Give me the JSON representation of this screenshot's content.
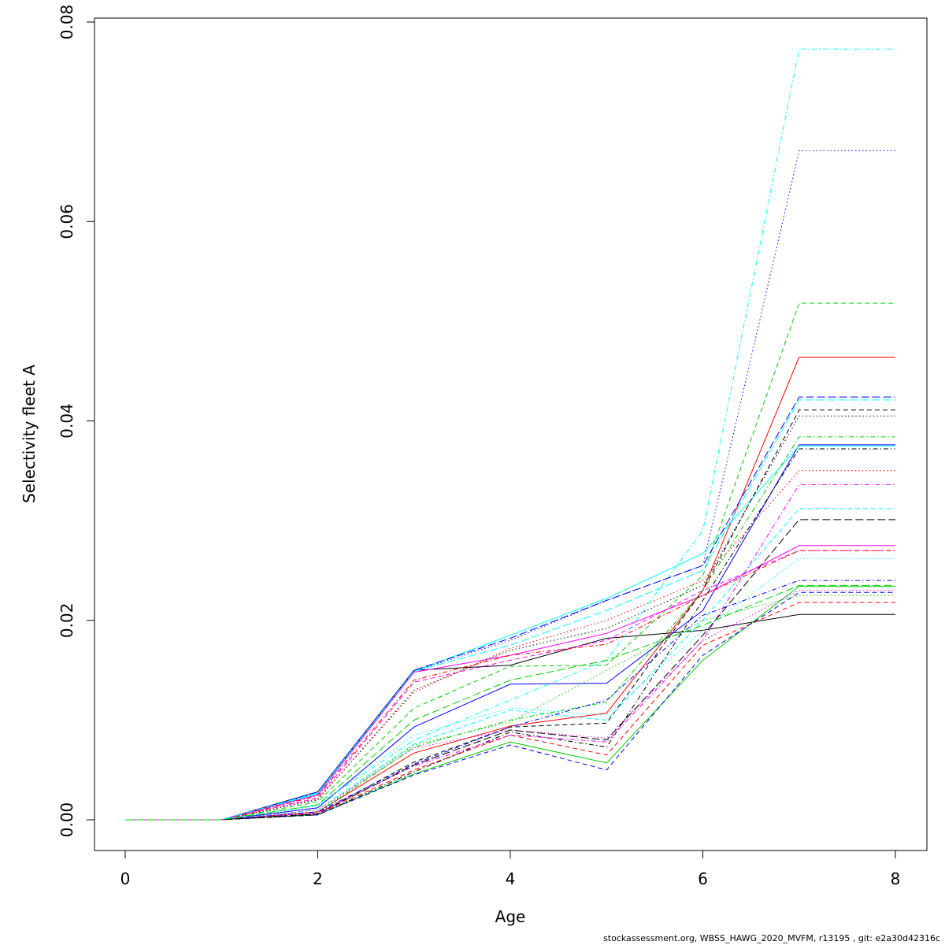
{
  "chart_data": {
    "type": "line",
    "title": "",
    "xlabel": "Age",
    "ylabel": "Selectivity fleet A",
    "xlim": [
      0,
      8
    ],
    "ylim": [
      0,
      0.08
    ],
    "x_ticks": [
      0,
      2,
      4,
      6,
      8
    ],
    "y_ticks": [
      0.0,
      0.02,
      0.04,
      0.06,
      0.08
    ],
    "x_tick_labels": [
      "0",
      "2",
      "4",
      "6",
      "8"
    ],
    "y_tick_labels": [
      "0.00",
      "0.02",
      "0.04",
      "0.06",
      "0.08"
    ],
    "grid": false,
    "legend": "none",
    "x": [
      0,
      1,
      2,
      3,
      4,
      5,
      6,
      7,
      8
    ],
    "series": [
      {
        "color": "#000000",
        "dash": "solid",
        "values": [
          0,
          0,
          0.0028,
          0.015,
          0.0155,
          0.0182,
          0.019,
          0.0206,
          0.0206
        ]
      },
      {
        "color": "#ff0000",
        "dash": "solid",
        "values": [
          0,
          0,
          0.0008,
          0.0067,
          0.0094,
          0.0107,
          0.023,
          0.0464,
          0.0464
        ]
      },
      {
        "color": "#00cd00",
        "dash": "solid",
        "values": [
          0,
          0,
          0.0005,
          0.0046,
          0.0078,
          0.0057,
          0.016,
          0.0234,
          0.0234
        ]
      },
      {
        "color": "#0000ff",
        "dash": "solid",
        "values": [
          0,
          0,
          0.0012,
          0.0093,
          0.0136,
          0.0137,
          0.021,
          0.0376,
          0.0376
        ]
      },
      {
        "color": "#00ffff",
        "dash": "solid",
        "values": [
          0,
          0,
          0.0026,
          0.0149,
          0.0185,
          0.0222,
          0.0267,
          0.0375,
          0.0375
        ]
      },
      {
        "color": "#ff00ff",
        "dash": "solid",
        "values": [
          0,
          0,
          0.0025,
          0.0148,
          0.0165,
          0.0187,
          0.0225,
          0.0275,
          0.0275
        ]
      },
      {
        "color": "#000000",
        "dash": "dashed",
        "values": [
          0,
          0,
          0.0006,
          0.0058,
          0.0093,
          0.0097,
          0.023,
          0.0411,
          0.0411
        ]
      },
      {
        "color": "#ff0000",
        "dash": "dashed",
        "values": [
          0,
          0,
          0.0006,
          0.005,
          0.0085,
          0.0065,
          0.0175,
          0.0218,
          0.0218
        ]
      },
      {
        "color": "#00cd00",
        "dash": "dashed",
        "values": [
          0,
          0,
          0.0018,
          0.0112,
          0.0154,
          0.0155,
          0.0245,
          0.0518,
          0.0518
        ]
      },
      {
        "color": "#0000ff",
        "dash": "dashed",
        "values": [
          0,
          0,
          0.0005,
          0.0045,
          0.0075,
          0.005,
          0.0165,
          0.0228,
          0.0228
        ]
      },
      {
        "color": "#00ffff",
        "dash": "dashed",
        "values": [
          0,
          0,
          0.001,
          0.0076,
          0.011,
          0.01,
          0.02,
          0.0312,
          0.0312
        ]
      },
      {
        "color": "#ff00ff",
        "dash": "dashed",
        "values": [
          0,
          0,
          0.0022,
          0.0138,
          0.016,
          0.018,
          0.023,
          0.027,
          0.027
        ]
      },
      {
        "color": "#000000",
        "dash": "dotted",
        "values": [
          0,
          0,
          0.002,
          0.013,
          0.017,
          0.0192,
          0.0235,
          0.0405,
          0.0405
        ]
      },
      {
        "color": "#ff0000",
        "dash": "dotted",
        "values": [
          0,
          0,
          0.0021,
          0.0128,
          0.0172,
          0.02,
          0.024,
          0.035,
          0.035
        ]
      },
      {
        "color": "#00cd00",
        "dash": "dotted",
        "values": [
          0,
          0,
          0.0008,
          0.0075,
          0.0098,
          0.015,
          0.02,
          0.0225,
          0.0225
        ]
      },
      {
        "color": "#0000ff",
        "dash": "dotted",
        "values": [
          0,
          0,
          0.0027,
          0.0149,
          0.018,
          0.022,
          0.0255,
          0.0671,
          0.0671
        ]
      },
      {
        "color": "#00ffff",
        "dash": "dotted",
        "values": [
          0,
          0,
          0.0014,
          0.0085,
          0.0112,
          0.0105,
          0.019,
          0.0262,
          0.0262
        ]
      },
      {
        "color": "#ff00ff",
        "dash": "dotted",
        "values": [
          0,
          0,
          0.001,
          0.0072,
          0.009,
          0.0082,
          0.018,
          0.023,
          0.023
        ]
      },
      {
        "color": "#000000",
        "dash": "dotdash",
        "values": [
          0,
          0,
          0.0005,
          0.0048,
          0.0088,
          0.0073,
          0.022,
          0.0372,
          0.0372
        ]
      },
      {
        "color": "#ff0000",
        "dash": "dotdash",
        "values": [
          0,
          0,
          0.0024,
          0.014,
          0.0165,
          0.0176,
          0.0225,
          0.027,
          0.027
        ]
      },
      {
        "color": "#00cd00",
        "dash": "dotdash",
        "values": [
          0,
          0,
          0.0007,
          0.0073,
          0.01,
          0.0118,
          0.023,
          0.0384,
          0.0384
        ]
      },
      {
        "color": "#0000ff",
        "dash": "dotdash",
        "values": [
          0,
          0,
          0.0008,
          0.0056,
          0.0093,
          0.012,
          0.0205,
          0.024,
          0.024
        ]
      },
      {
        "color": "#00ffff",
        "dash": "dotdash",
        "values": [
          0,
          0,
          0.0015,
          0.008,
          0.012,
          0.016,
          0.029,
          0.0773,
          0.0773
        ]
      },
      {
        "color": "#ff00ff",
        "dash": "dotdash",
        "values": [
          0,
          0,
          0.0007,
          0.0054,
          0.0085,
          0.0078,
          0.018,
          0.0336,
          0.0336
        ]
      },
      {
        "color": "#000000",
        "dash": "longdash",
        "values": [
          0,
          0,
          0.0006,
          0.0055,
          0.009,
          0.008,
          0.0185,
          0.0301,
          0.0301
        ]
      },
      {
        "color": "#0000ff",
        "dash": "longdash",
        "values": [
          0,
          0,
          0.0028,
          0.015,
          0.0182,
          0.022,
          0.0255,
          0.0424,
          0.0424
        ]
      },
      {
        "color": "#00ffff",
        "dash": "longdash",
        "values": [
          0,
          0,
          0.0027,
          0.0149,
          0.0175,
          0.021,
          0.025,
          0.0421,
          0.0421
        ]
      },
      {
        "color": "#00cd00",
        "dash": "longdash",
        "values": [
          0,
          0,
          0.0015,
          0.01,
          0.014,
          0.016,
          0.0195,
          0.0235,
          0.0235
        ]
      }
    ]
  },
  "footer": {
    "text": "stockassessment.org, WBSS_HAWG_2020_MVFM, r13195 , git: e2a30d42316c"
  }
}
